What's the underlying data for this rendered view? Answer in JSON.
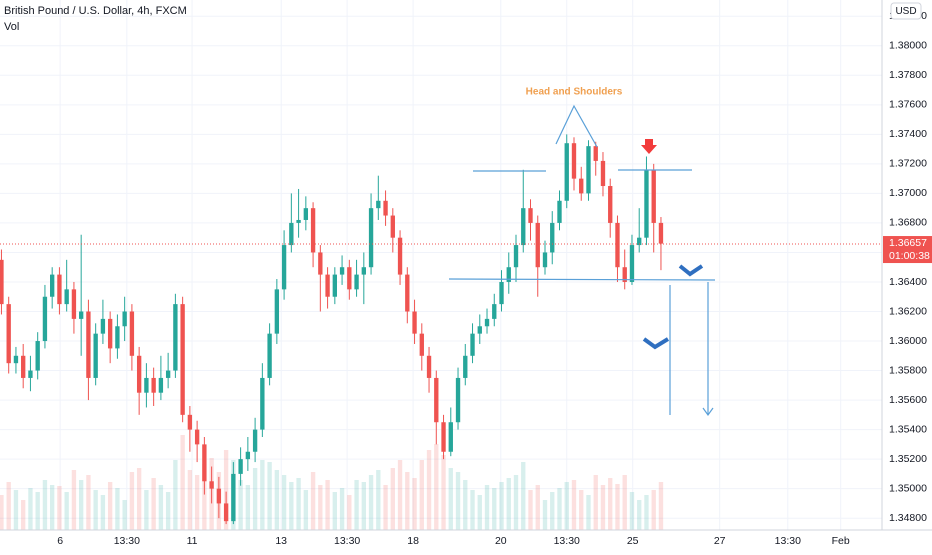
{
  "chart_data": {
    "type": "candlestick",
    "title": "British Pound / U.S. Dollar, 4h, FXCM",
    "volume_label": "Vol",
    "currency": "USD",
    "annotation": "Head and Shoulders",
    "last_price": 1.36657,
    "countdown": "01:00:38",
    "up_color": "#26a69a",
    "down_color": "#ef5350",
    "grid": true,
    "xlim": [
      -0.2,
      121.5
    ],
    "ylim": [
      1.3472,
      1.3831
    ],
    "xticks": [
      {
        "value": 8.1,
        "label": "6"
      },
      {
        "value": 17.3,
        "label": "13:30"
      },
      {
        "value": 26.3,
        "label": "11"
      },
      {
        "value": 38.6,
        "label": "13"
      },
      {
        "value": 47.7,
        "label": "13:30"
      },
      {
        "value": 56.8,
        "label": "18"
      },
      {
        "value": 68.9,
        "label": "20"
      },
      {
        "value": 78.0,
        "label": "13:30"
      },
      {
        "value": 87.1,
        "label": "25"
      },
      {
        "value": 99.1,
        "label": "27"
      },
      {
        "value": 108.5,
        "label": "13:30"
      },
      {
        "value": 115.8,
        "label": "Feb"
      }
    ],
    "yticks": [
      {
        "value": 1.348,
        "label": "1.34800"
      },
      {
        "value": 1.35,
        "label": "1.35000"
      },
      {
        "value": 1.352,
        "label": "1.35200"
      },
      {
        "value": 1.354,
        "label": "1.35400"
      },
      {
        "value": 1.356,
        "label": "1.35600"
      },
      {
        "value": 1.358,
        "label": "1.35800"
      },
      {
        "value": 1.36,
        "label": "1.36000"
      },
      {
        "value": 1.362,
        "label": "1.36200"
      },
      {
        "value": 1.364,
        "label": "1.36400"
      },
      {
        "value": 1.366,
        "label": "1.36600"
      },
      {
        "value": 1.368,
        "label": "1.36800"
      },
      {
        "value": 1.37,
        "label": "1.37000"
      },
      {
        "value": 1.372,
        "label": "1.37200"
      },
      {
        "value": 1.374,
        "label": "1.37400"
      },
      {
        "value": 1.376,
        "label": "1.37600"
      },
      {
        "value": 1.378,
        "label": "1.37800"
      },
      {
        "value": 1.38,
        "label": "1.38000"
      },
      {
        "value": 1.382,
        "label": "1.38200"
      }
    ],
    "x": [
      0,
      1,
      2,
      3,
      4,
      5,
      6,
      7,
      8,
      9,
      10,
      11,
      12,
      13,
      14,
      15,
      16,
      17,
      18,
      19,
      20,
      21,
      22,
      23,
      24,
      25,
      26,
      27,
      28,
      29,
      30,
      31,
      32,
      33,
      34,
      35,
      36,
      37,
      38,
      39,
      40,
      41,
      42,
      43,
      44,
      45,
      46,
      47,
      48,
      49,
      50,
      51,
      52,
      53,
      54,
      55,
      56,
      57,
      58,
      59,
      60,
      61,
      62,
      63,
      64,
      65,
      66,
      67,
      68,
      69,
      70,
      71,
      72,
      73,
      74,
      75,
      76,
      77,
      78,
      79,
      80,
      81,
      82,
      83,
      84,
      85,
      86,
      87,
      88,
      89,
      90,
      91
    ],
    "open": [
      1.3655,
      1.3625,
      1.3585,
      1.359,
      1.3575,
      1.358,
      1.36,
      1.363,
      1.3645,
      1.3625,
      1.3635,
      1.3615,
      1.362,
      1.3575,
      1.3605,
      1.3615,
      1.3595,
      1.361,
      1.362,
      1.359,
      1.3565,
      1.3575,
      1.3565,
      1.3575,
      1.358,
      1.3625,
      1.355,
      1.354,
      1.353,
      1.3505,
      1.35,
      1.349,
      1.3478,
      1.351,
      1.352,
      1.3525,
      1.354,
      1.3575,
      1.3605,
      1.3635,
      1.3665,
      1.368,
      1.3682,
      1.369,
      1.366,
      1.3645,
      1.363,
      1.3645,
      1.365,
      1.3635,
      1.3645,
      1.365,
      1.369,
      1.3695,
      1.3685,
      1.367,
      1.3645,
      1.362,
      1.3605,
      1.359,
      1.3575,
      1.3545,
      1.3525,
      1.3545,
      1.3575,
      1.359,
      1.3605,
      1.361,
      1.3615,
      1.3625,
      1.364,
      1.365,
      1.3665,
      1.369,
      1.368,
      1.365,
      1.366,
      1.368,
      1.3695,
      1.3734,
      1.371,
      1.37,
      1.3732,
      1.3722,
      1.3705,
      1.368,
      1.365,
      1.364,
      1.3665,
      1.367,
      1.3716,
      1.368
    ],
    "high": [
      1.3662,
      1.363,
      1.3596,
      1.3598,
      1.359,
      1.3606,
      1.3638,
      1.365,
      1.365,
      1.3655,
      1.364,
      1.3672,
      1.3628,
      1.3612,
      1.3628,
      1.362,
      1.3618,
      1.363,
      1.3625,
      1.3596,
      1.3585,
      1.3582,
      1.359,
      1.3592,
      1.3632,
      1.363,
      1.3556,
      1.3546,
      1.3535,
      1.3515,
      1.3508,
      1.3498,
      1.3518,
      1.3528,
      1.3535,
      1.3548,
      1.3585,
      1.3612,
      1.3642,
      1.3675,
      1.37,
      1.3703,
      1.3698,
      1.3694,
      1.3665,
      1.365,
      1.365,
      1.3658,
      1.3655,
      1.3655,
      1.366,
      1.37,
      1.3712,
      1.3702,
      1.369,
      1.3675,
      1.365,
      1.3628,
      1.3612,
      1.3596,
      1.358,
      1.355,
      1.3555,
      1.3582,
      1.3598,
      1.3612,
      1.3618,
      1.3622,
      1.3632,
      1.3648,
      1.366,
      1.3672,
      1.3716,
      1.3696,
      1.3685,
      1.3668,
      1.3688,
      1.3702,
      1.374,
      1.3738,
      1.3718,
      1.3736,
      1.3735,
      1.3728,
      1.371,
      1.3685,
      1.3662,
      1.3672,
      1.369,
      1.3725,
      1.372,
      1.3684
    ],
    "low": [
      1.3618,
      1.3578,
      1.3578,
      1.3568,
      1.3566,
      1.3574,
      1.3595,
      1.3622,
      1.3618,
      1.362,
      1.3605,
      1.359,
      1.356,
      1.357,
      1.3598,
      1.3585,
      1.3588,
      1.36,
      1.358,
      1.355,
      1.3555,
      1.3556,
      1.356,
      1.3568,
      1.3575,
      1.3545,
      1.3525,
      1.3518,
      1.3496,
      1.349,
      1.348,
      1.3476,
      1.3476,
      1.3502,
      1.3512,
      1.3518,
      1.3535,
      1.357,
      1.3598,
      1.3628,
      1.366,
      1.367,
      1.3675,
      1.365,
      1.362,
      1.3622,
      1.3625,
      1.3638,
      1.3628,
      1.363,
      1.3625,
      1.3645,
      1.3682,
      1.3678,
      1.366,
      1.3638,
      1.3612,
      1.3598,
      1.358,
      1.3565,
      1.353,
      1.352,
      1.3522,
      1.354,
      1.357,
      1.3585,
      1.3598,
      1.3605,
      1.361,
      1.362,
      1.3632,
      1.364,
      1.366,
      1.3668,
      1.363,
      1.3645,
      1.3652,
      1.3675,
      1.369,
      1.3702,
      1.3695,
      1.3695,
      1.3712,
      1.3698,
      1.367,
      1.364,
      1.3635,
      1.3638,
      1.366,
      1.3665,
      1.366,
      1.3648
    ],
    "close": [
      1.3625,
      1.3585,
      1.359,
      1.3575,
      1.358,
      1.36,
      1.363,
      1.3645,
      1.3625,
      1.3635,
      1.3615,
      1.362,
      1.3575,
      1.3605,
      1.3615,
      1.3595,
      1.361,
      1.362,
      1.359,
      1.3565,
      1.3575,
      1.3565,
      1.3575,
      1.358,
      1.3625,
      1.355,
      1.354,
      1.353,
      1.3505,
      1.35,
      1.349,
      1.3478,
      1.351,
      1.352,
      1.3525,
      1.354,
      1.3575,
      1.3605,
      1.3635,
      1.3665,
      1.368,
      1.3682,
      1.369,
      1.366,
      1.3645,
      1.363,
      1.3645,
      1.365,
      1.3635,
      1.3645,
      1.365,
      1.369,
      1.3695,
      1.3685,
      1.367,
      1.3645,
      1.362,
      1.3605,
      1.359,
      1.3575,
      1.3545,
      1.3525,
      1.3545,
      1.3575,
      1.359,
      1.3605,
      1.361,
      1.3615,
      1.3625,
      1.364,
      1.365,
      1.3665,
      1.369,
      1.368,
      1.365,
      1.366,
      1.368,
      1.3695,
      1.3734,
      1.371,
      1.37,
      1.3732,
      1.3722,
      1.3705,
      1.368,
      1.365,
      1.364,
      1.3665,
      1.367,
      1.3716,
      1.368,
      1.3666
    ],
    "volume": [
      35,
      48,
      40,
      30,
      42,
      38,
      50,
      45,
      44,
      38,
      60,
      50,
      55,
      40,
      35,
      48,
      42,
      30,
      58,
      62,
      40,
      52,
      45,
      38,
      70,
      95,
      60,
      55,
      66,
      72,
      58,
      80,
      70,
      50,
      45,
      62,
      70,
      68,
      60,
      55,
      48,
      52,
      40,
      58,
      45,
      50,
      38,
      42,
      35,
      50,
      48,
      55,
      60,
      45,
      62,
      70,
      58,
      52,
      70,
      80,
      86,
      75,
      62,
      58,
      50,
      40,
      35,
      45,
      42,
      48,
      52,
      55,
      68,
      40,
      45,
      30,
      38,
      42,
      48,
      50,
      40,
      35,
      55,
      45,
      52,
      46,
      55,
      38,
      30,
      35,
      40,
      48
    ]
  }
}
